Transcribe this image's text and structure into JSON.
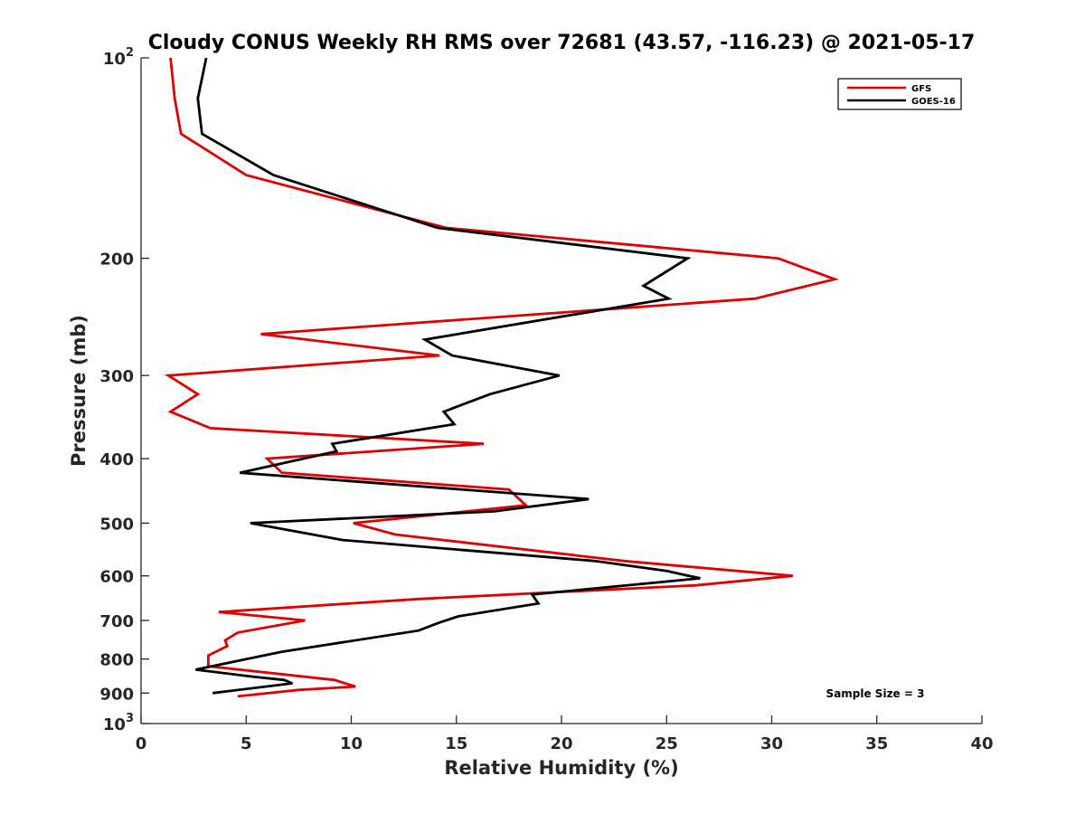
{
  "chart_data": {
    "type": "line",
    "title": "Cloudy CONUS Weekly RH RMS over 72681 (43.57, -116.23) @ 2021-05-17",
    "xlabel": "Relative Humidity (%)",
    "ylabel": "Pressure (mb)",
    "xlim": [
      0,
      40
    ],
    "ylim": [
      100,
      1000
    ],
    "y_scale": "log",
    "y_reversed": true,
    "grid": false,
    "legend_position": "top-right",
    "x_ticks": [
      "0",
      "5",
      "10",
      "15",
      "20",
      "25",
      "30",
      "35",
      "40"
    ],
    "y_ticks": [
      {
        "value": 100,
        "base": "10",
        "exp": "2"
      },
      {
        "value": 200,
        "label": "200"
      },
      {
        "value": 300,
        "label": "300"
      },
      {
        "value": 400,
        "label": "400"
      },
      {
        "value": 500,
        "label": "500"
      },
      {
        "value": 600,
        "label": "600"
      },
      {
        "value": 700,
        "label": "700"
      },
      {
        "value": 800,
        "label": "800"
      },
      {
        "value": 900,
        "label": "900"
      },
      {
        "value": 1000,
        "base": "10",
        "exp": "3"
      }
    ],
    "annotation": "Sample Size = 3",
    "series": [
      {
        "name": "GFS",
        "color": "#e00000",
        "points": [
          [
            1.4,
            100
          ],
          [
            1.6,
            115
          ],
          [
            1.9,
            130
          ],
          [
            5.0,
            150
          ],
          [
            14.5,
            180
          ],
          [
            30.3,
            200
          ],
          [
            33.0,
            215
          ],
          [
            29.2,
            230
          ],
          [
            5.7,
            260
          ],
          [
            14.2,
            280
          ],
          [
            1.3,
            300
          ],
          [
            2.7,
            320
          ],
          [
            1.4,
            340
          ],
          [
            3.3,
            360
          ],
          [
            16.3,
            380
          ],
          [
            6.0,
            400
          ],
          [
            6.7,
            420
          ],
          [
            17.5,
            445
          ],
          [
            18.3,
            470
          ],
          [
            10.1,
            500
          ],
          [
            12.1,
            520
          ],
          [
            23.0,
            570
          ],
          [
            31.0,
            600
          ],
          [
            26.4,
            620
          ],
          [
            13.2,
            650
          ],
          [
            3.7,
            680
          ],
          [
            7.8,
            700
          ],
          [
            4.6,
            730
          ],
          [
            4.0,
            750
          ],
          [
            4.1,
            765
          ],
          [
            3.2,
            790
          ],
          [
            3.2,
            820
          ],
          [
            9.2,
            860
          ],
          [
            10.2,
            880
          ],
          [
            7.5,
            890
          ],
          [
            4.6,
            910
          ]
        ]
      },
      {
        "name": "GOES-16",
        "color": "#000000",
        "points": [
          [
            3.1,
            100
          ],
          [
            2.7,
            115
          ],
          [
            2.9,
            130
          ],
          [
            6.3,
            150
          ],
          [
            14.1,
            180
          ],
          [
            26.0,
            200
          ],
          [
            23.9,
            220
          ],
          [
            25.1,
            230
          ],
          [
            13.5,
            265
          ],
          [
            14.8,
            280
          ],
          [
            19.9,
            300
          ],
          [
            16.6,
            320
          ],
          [
            14.4,
            340
          ],
          [
            14.9,
            355
          ],
          [
            9.1,
            380
          ],
          [
            9.3,
            390
          ],
          [
            4.7,
            420
          ],
          [
            21.3,
            460
          ],
          [
            16.8,
            480
          ],
          [
            5.2,
            500
          ],
          [
            9.6,
            530
          ],
          [
            21.6,
            570
          ],
          [
            25.0,
            590
          ],
          [
            26.6,
            605
          ],
          [
            18.6,
            640
          ],
          [
            18.9,
            660
          ],
          [
            15.1,
            690
          ],
          [
            14.2,
            705
          ],
          [
            13.2,
            725
          ],
          [
            6.7,
            780
          ],
          [
            4.2,
            810
          ],
          [
            2.6,
            830
          ],
          [
            5.3,
            850
          ],
          [
            6.8,
            860
          ],
          [
            7.2,
            870
          ],
          [
            3.4,
            900
          ]
        ]
      }
    ]
  }
}
